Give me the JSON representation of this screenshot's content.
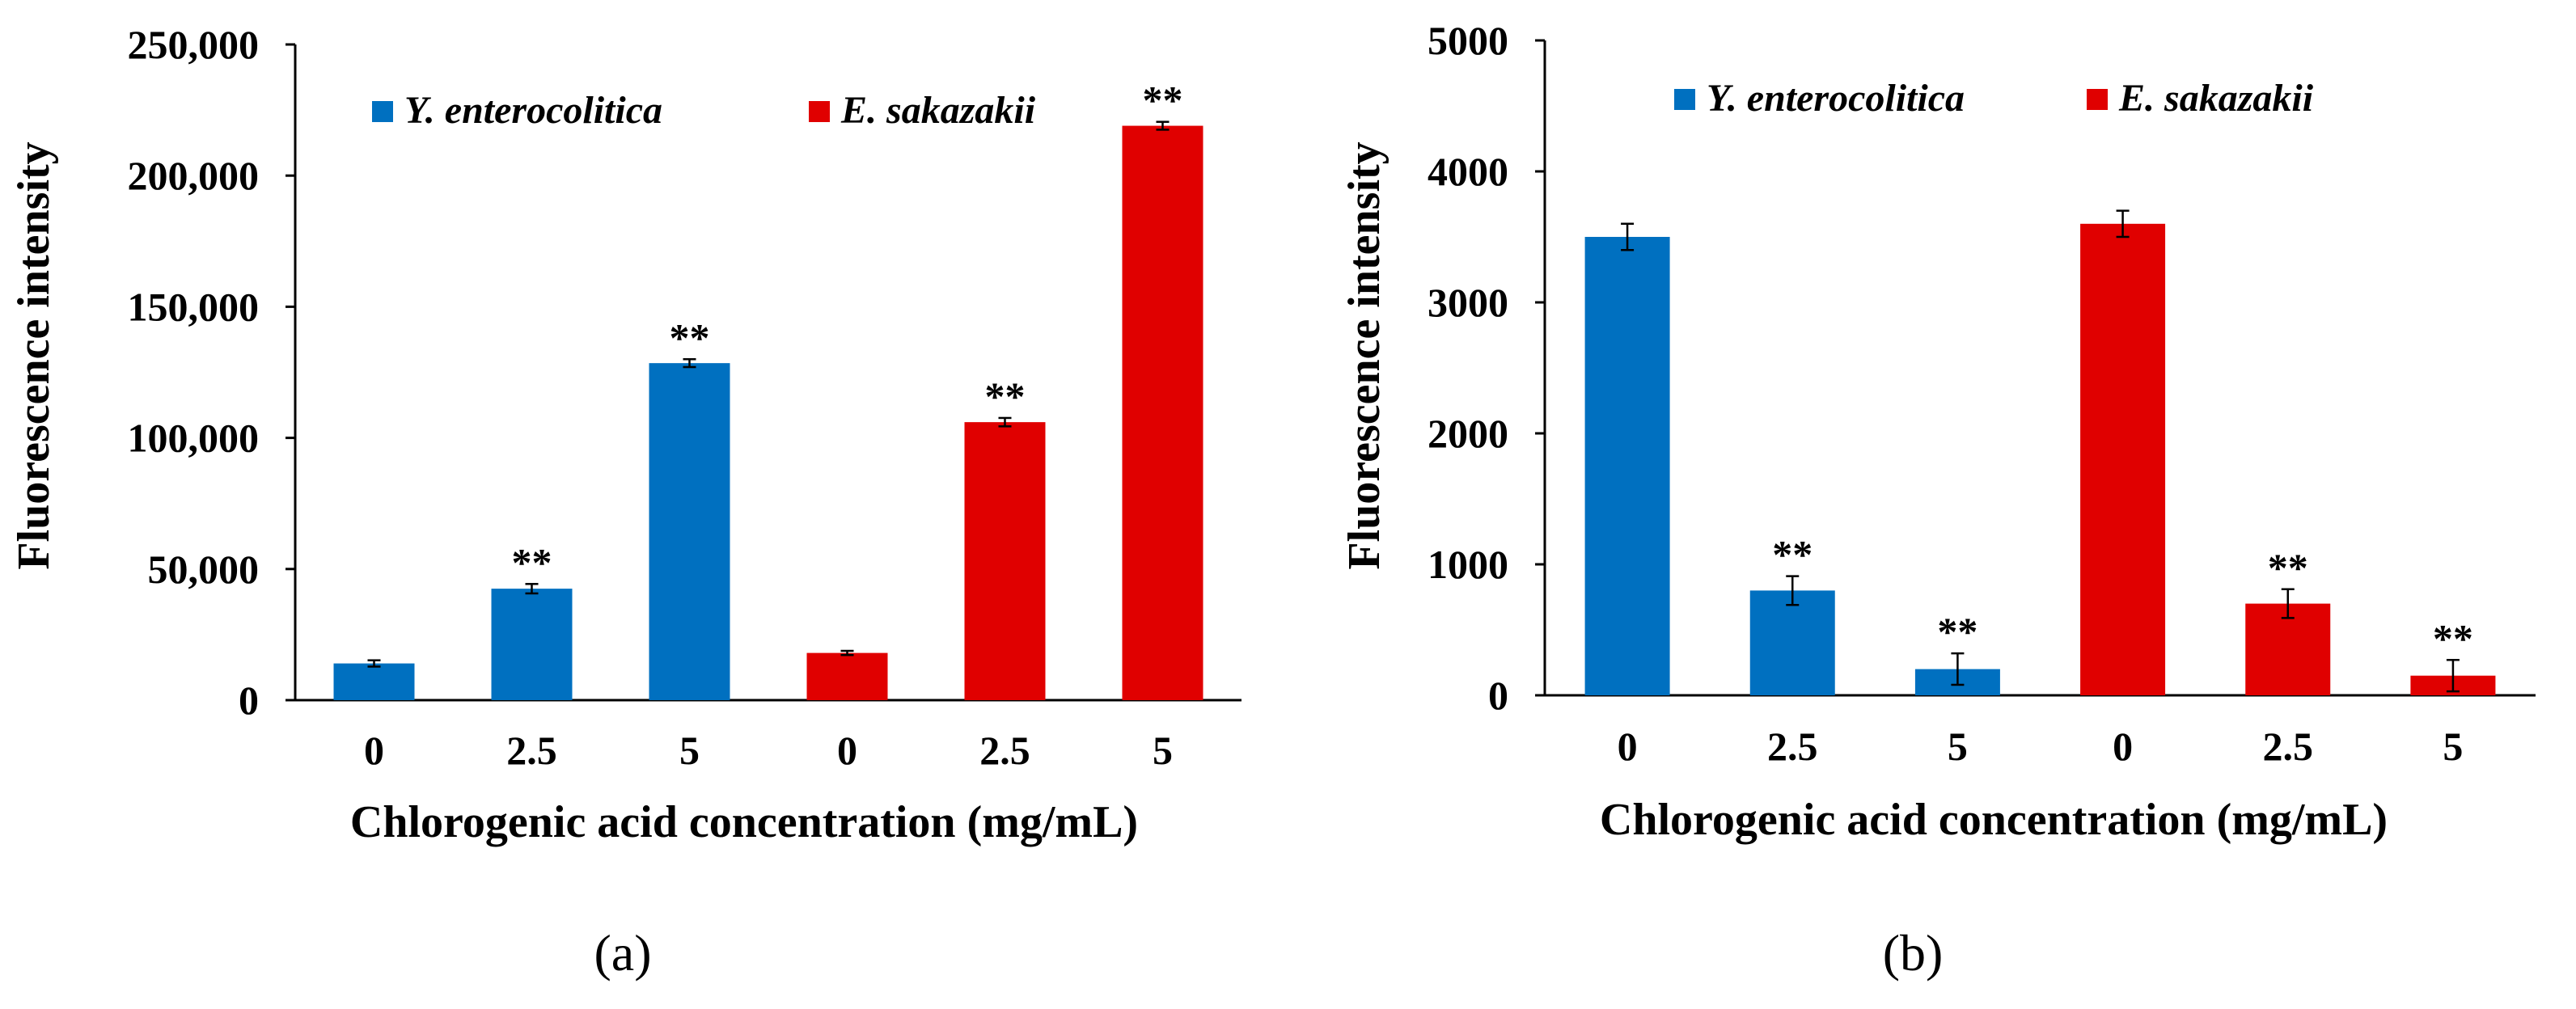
{
  "figure": {
    "panel_labels": [
      "(a)",
      "(b)"
    ]
  },
  "colors": {
    "y_enterocolitica": "#0070C0",
    "e_sakazakii": "#E00000",
    "axis": "#000000"
  },
  "chart_data": [
    {
      "panel": "(a)",
      "type": "bar",
      "title": "",
      "xlabel": "Chlorogenic acid concentration (mg/mL)",
      "ylabel": "Fluorescence intensity",
      "ylim": [
        0,
        250000
      ],
      "yticks": [
        "0",
        "50,000",
        "100,000",
        "150,000",
        "200,000",
        "250,000"
      ],
      "ytick_values": [
        0,
        50000,
        100000,
        150000,
        200000,
        250000
      ],
      "categories": [
        "0",
        "2.5",
        "5",
        "0",
        "2.5",
        "5"
      ],
      "series": [
        {
          "name": "Y. enterocolitica",
          "color": "#0070C0",
          "bar_indices": [
            0,
            1,
            2
          ]
        },
        {
          "name": "E. sakazakii",
          "color": "#E00000",
          "bar_indices": [
            3,
            4,
            5
          ]
        }
      ],
      "values": [
        14000,
        42500,
        128500,
        18000,
        106000,
        219000
      ],
      "errors": [
        1200,
        1800,
        1500,
        800,
        1600,
        1500
      ],
      "significance": [
        "",
        "**",
        "**",
        "",
        "**",
        "**"
      ],
      "legend": "top",
      "grid": false
    },
    {
      "panel": "(b)",
      "type": "bar",
      "title": "",
      "xlabel": "Chlorogenic acid concentration (mg/mL)",
      "ylabel": "Fluorescence intensity",
      "ylim": [
        0,
        5000
      ],
      "yticks": [
        "0",
        "1000",
        "2000",
        "3000",
        "4000",
        "5000"
      ],
      "ytick_values": [
        0,
        1000,
        2000,
        3000,
        4000,
        5000
      ],
      "categories": [
        "0",
        "2.5",
        "5",
        "0",
        "2.5",
        "5"
      ],
      "series": [
        {
          "name": "Y. enterocolitica",
          "color": "#0070C0",
          "bar_indices": [
            0,
            1,
            2
          ]
        },
        {
          "name": "E. sakazakii",
          "color": "#E00000",
          "bar_indices": [
            3,
            4,
            5
          ]
        }
      ],
      "values": [
        3500,
        800,
        200,
        3600,
        700,
        150
      ],
      "errors": [
        100,
        110,
        120,
        100,
        110,
        120
      ],
      "significance": [
        "",
        "**",
        "**",
        "",
        "**",
        "**"
      ],
      "legend": "top",
      "grid": false
    }
  ]
}
